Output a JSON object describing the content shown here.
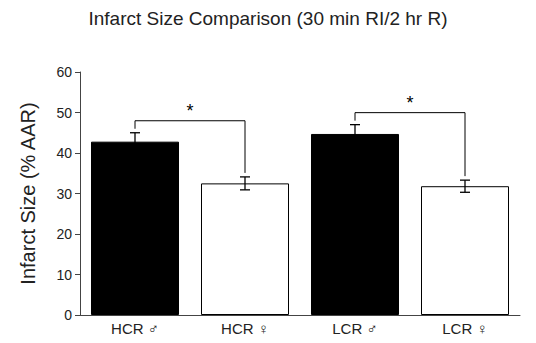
{
  "chart_data": {
    "type": "bar",
    "title": "Infarct Size Comparison (30 min RI/2 hr R)",
    "y_label": "Infarct Size (% AAR)",
    "categories": [
      "HCR ♂",
      "HCR ♀",
      "LCR ♂",
      "LCR ♀"
    ],
    "values": [
      42.8,
      32.5,
      44.7,
      31.8
    ],
    "errors": [
      2.2,
      1.6,
      2.3,
      1.5
    ],
    "colors": [
      "#000000",
      "#ffffff",
      "#000000",
      "#ffffff"
    ],
    "ylim": [
      0,
      60
    ],
    "yticks": [
      0,
      10,
      20,
      30,
      40,
      50,
      60
    ],
    "grid": false,
    "significance": [
      {
        "pair": [
          "HCR ♂",
          "HCR ♀"
        ],
        "label": "*"
      },
      {
        "pair": [
          "LCR ♂",
          "LCR ♀"
        ],
        "label": "*"
      }
    ]
  }
}
